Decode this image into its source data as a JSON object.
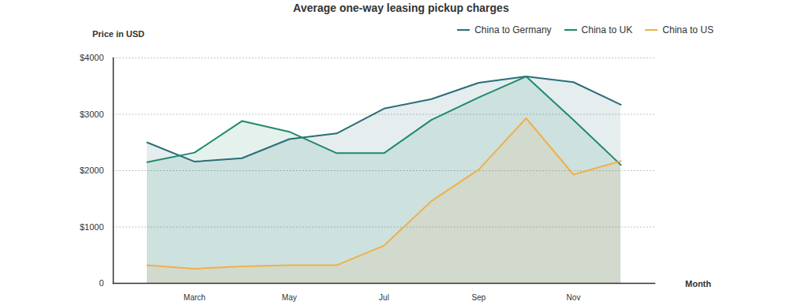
{
  "chart_data": {
    "type": "line",
    "title": "Average one-way leasing pickup charges",
    "y_label": "Price in USD",
    "x_label": "Month",
    "categories": [
      null,
      "March",
      null,
      "May",
      null,
      "Jul",
      null,
      "Sep",
      null,
      "Nov",
      null
    ],
    "series": [
      {
        "name": "China to Germany",
        "color": "#2a6e78",
        "values": [
          2500,
          2160,
          2220,
          2560,
          2660,
          3100,
          3270,
          3560,
          3670,
          3570,
          3170
        ]
      },
      {
        "name": "China to UK",
        "color": "#1e8a6e",
        "values": [
          2150,
          2320,
          2880,
          2690,
          2310,
          2310,
          2900,
          3300,
          3670,
          2900,
          2100
        ]
      },
      {
        "name": "China to US",
        "color": "#f0b04a",
        "values": [
          320,
          260,
          300,
          320,
          320,
          670,
          1460,
          2020,
          2930,
          1930,
          2170
        ]
      }
    ],
    "ylim": [
      0,
      4000
    ],
    "yticks": [
      0,
      {
        "value": 1000,
        "label": "$1000"
      },
      {
        "value": 2000,
        "label": "$2000"
      },
      {
        "value": 3000,
        "label": "$3000"
      },
      {
        "value": 4000,
        "label": "$4000"
      }
    ],
    "grid": true,
    "legend": "top-right"
  }
}
